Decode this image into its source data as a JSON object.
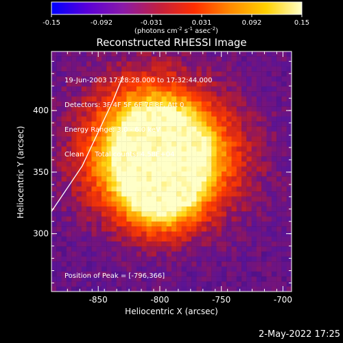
{
  "colorbar": {
    "ticks": [
      "-0.15",
      "-0.092",
      "-0.031",
      "0.031",
      "0.092",
      "0.15"
    ],
    "units_prefix": "(photons cm",
    "units_exp1": "-2",
    "units_mid": " s",
    "units_exp2": "-1",
    "units_mid2": " asec",
    "units_exp3": "-2",
    "units_suffix": ")",
    "stops": [
      "#0000ff",
      "#5a00d8",
      "#8a1aa8",
      "#c21f40",
      "#ff2e00",
      "#ff8a00",
      "#ffd000",
      "#ffffc8"
    ]
  },
  "plot": {
    "title": "Reconstructed RHESSI Image",
    "xlabel": "Heliocentric X (arcsec)",
    "ylabel": "Heliocentric Y (arcsec)",
    "xticks": [
      "-850",
      "-800",
      "-750",
      "-700"
    ],
    "yticks": [
      "400",
      "350",
      "300"
    ]
  },
  "annotations": {
    "line1": "19-Jun-2003 17:28:28.000 to 17:32:44.000",
    "line2": "Detectors: 3F 4F 5F 6F 7F 8F, Att 0",
    "line3": "Energy Range: 3.0 - 6.0 keV",
    "line4": "Clean     Total counts: 4.58E+04",
    "peak": "Position of Peak = [-796,366]"
  },
  "timestamp": "2-May-2022 17:25",
  "chart_data": {
    "type": "heatmap",
    "title": "Reconstructed RHESSI Image",
    "xlabel": "Heliocentric X (arcsec)",
    "ylabel": "Heliocentric Y (arcsec)",
    "xlim": [
      -888,
      -693
    ],
    "ylim": [
      253,
      448
    ],
    "color_range": [
      -0.15,
      0.15
    ],
    "peak": [
      -796,
      366
    ],
    "limb_line": [
      [
        -888,
        318
      ],
      [
        -863,
        355
      ],
      [
        -838,
        408
      ],
      [
        -830,
        428
      ]
    ],
    "emission_centers": [
      {
        "x": -796,
        "y": 366,
        "amp": 1.0,
        "sigma": 25
      },
      {
        "x": -799,
        "y": 332,
        "amp": 0.85,
        "sigma": 22
      },
      {
        "x": -828,
        "y": 358,
        "amp": 0.55,
        "sigma": 30
      },
      {
        "x": -770,
        "y": 360,
        "amp": 0.5,
        "sigma": 32
      },
      {
        "x": -810,
        "y": 395,
        "amp": 0.45,
        "sigma": 30
      }
    ]
  }
}
